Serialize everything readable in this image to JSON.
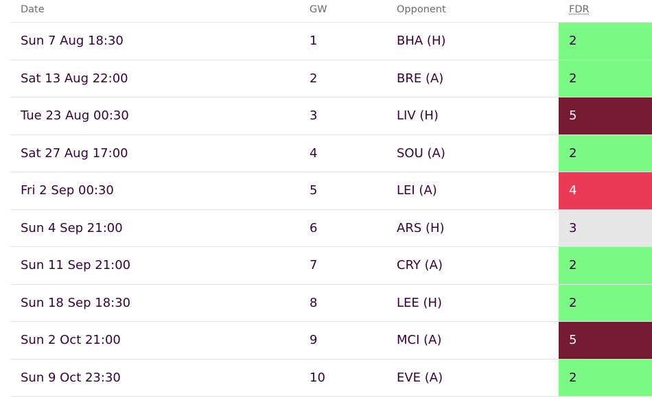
{
  "columns": {
    "date": "Date",
    "gw": "GW",
    "opponent": "Opponent",
    "fdr": "FDR"
  },
  "fdr_colors": {
    "2": {
      "bg": "#7afa84",
      "fg": "#37003c"
    },
    "3": {
      "bg": "#e7e7e7",
      "fg": "#37003c"
    },
    "4": {
      "bg": "#ea3a58",
      "fg": "#ffffff"
    },
    "5": {
      "bg": "#741a31",
      "fg": "#ffffff"
    }
  },
  "fixtures": [
    {
      "date": "Sun 7 Aug 18:30",
      "gw": "1",
      "opponent": "BHA (H)",
      "fdr": "2"
    },
    {
      "date": "Sat 13 Aug 22:00",
      "gw": "2",
      "opponent": "BRE (A)",
      "fdr": "2"
    },
    {
      "date": "Tue 23 Aug 00:30",
      "gw": "3",
      "opponent": "LIV (H)",
      "fdr": "5"
    },
    {
      "date": "Sat 27 Aug 17:00",
      "gw": "4",
      "opponent": "SOU (A)",
      "fdr": "2"
    },
    {
      "date": "Fri 2 Sep 00:30",
      "gw": "5",
      "opponent": "LEI (A)",
      "fdr": "4"
    },
    {
      "date": "Sun 4 Sep 21:00",
      "gw": "6",
      "opponent": "ARS (H)",
      "fdr": "3"
    },
    {
      "date": "Sun 11 Sep 21:00",
      "gw": "7",
      "opponent": "CRY (A)",
      "fdr": "2"
    },
    {
      "date": "Sun 18 Sep 18:30",
      "gw": "8",
      "opponent": "LEE (H)",
      "fdr": "2"
    },
    {
      "date": "Sun 2 Oct 21:00",
      "gw": "9",
      "opponent": "MCI (A)",
      "fdr": "5"
    },
    {
      "date": "Sun 9 Oct 23:30",
      "gw": "10",
      "opponent": "EVE (A)",
      "fdr": "2"
    }
  ]
}
